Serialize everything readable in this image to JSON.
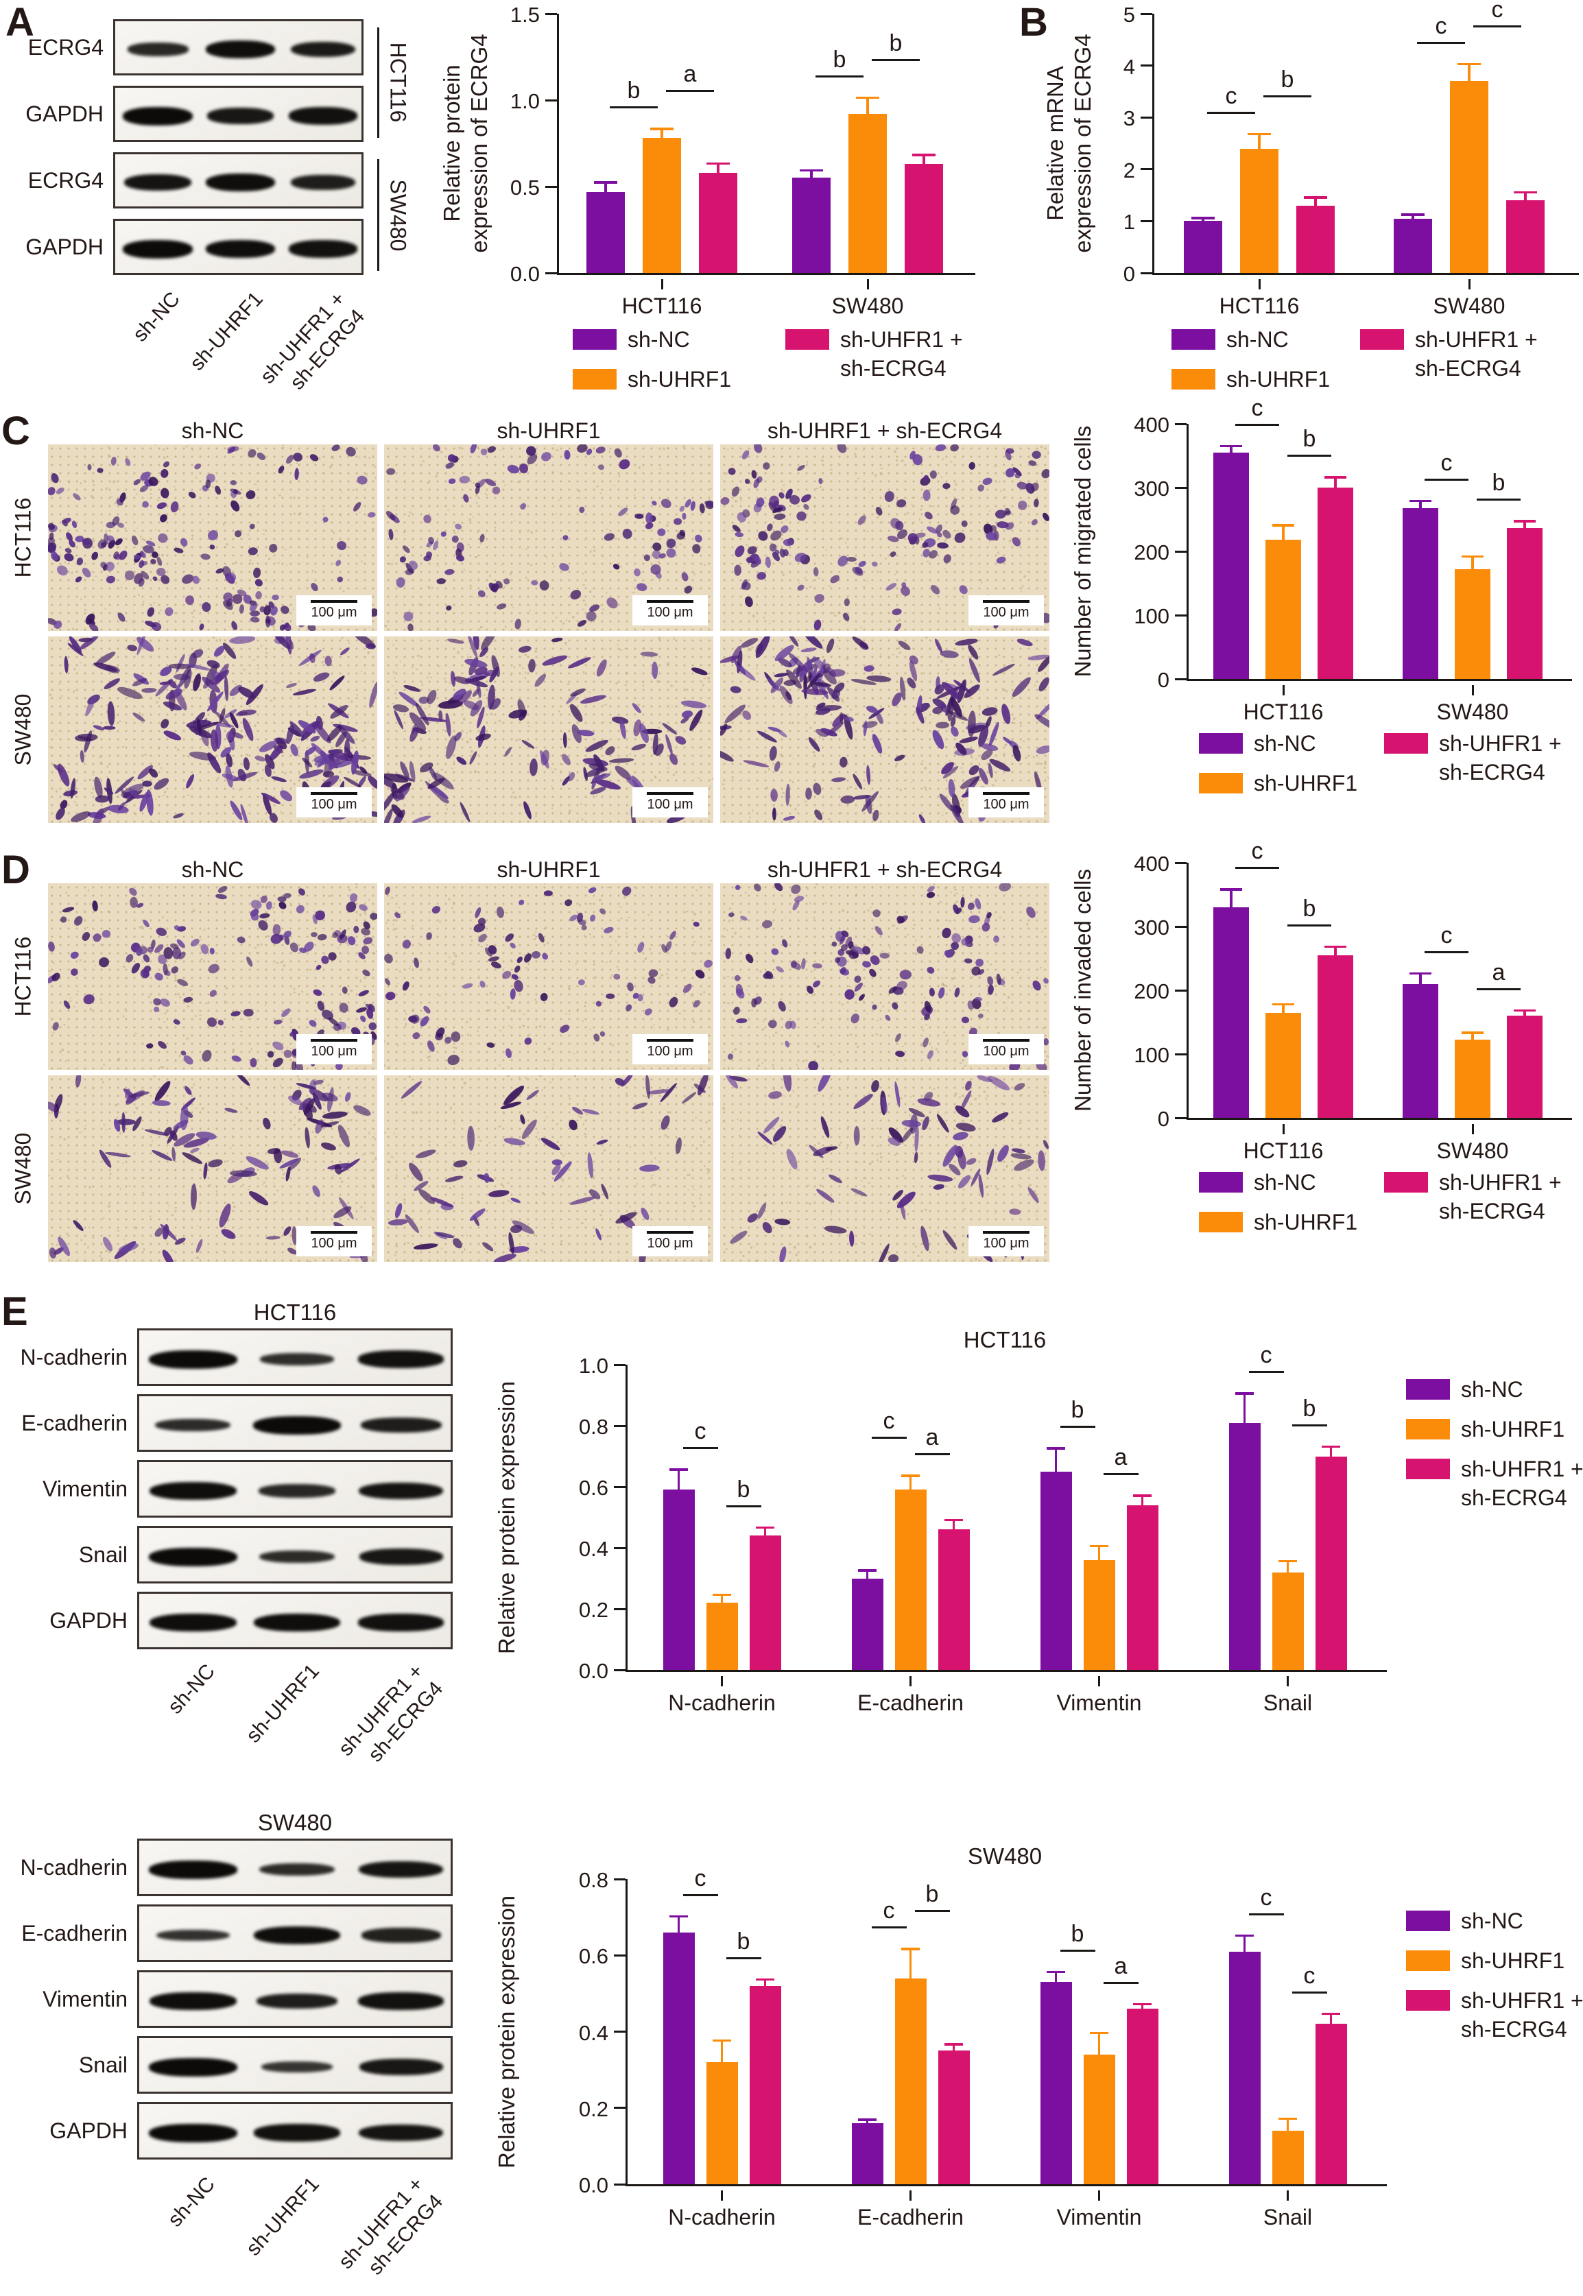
{
  "colors": {
    "purple": "#7D0FA0",
    "orange": "#FB8C0A",
    "magenta": "#D6146F",
    "text": "#231815",
    "axis": "#1A1714",
    "blot_border": "#3A3330",
    "band": "#0D0B09",
    "micro_bg": "#E9DCC1"
  },
  "legend": {
    "items": [
      {
        "label": "sh-NC",
        "color": "purple"
      },
      {
        "label": "sh-UHRF1",
        "color": "orange"
      },
      {
        "label": "sh-UHFR1 +",
        "label2": "sh-ECRG4",
        "color": "magenta"
      }
    ]
  },
  "lanes": [
    {
      "line1": "sh-NC"
    },
    {
      "line1": "sh-UHRF1"
    },
    {
      "line1": "sh-UHFR1 +",
      "line2": "sh-ECRG4"
    }
  ],
  "panels": {
    "A": {
      "letter": "A",
      "blot_rows": [
        {
          "label": "ECRG4",
          "bands": [
            0.55,
            0.95,
            0.75
          ]
        },
        {
          "label": "GAPDH",
          "bands": [
            1,
            0.8,
            0.9
          ]
        },
        {
          "label": "ECRG4",
          "bands": [
            0.85,
            0.95,
            0.7
          ]
        },
        {
          "label": "GAPDH",
          "bands": [
            1,
            0.95,
            0.9
          ]
        }
      ],
      "cell_lines": [
        "HCT116",
        "SW480"
      ]
    },
    "B": {
      "letter": "B"
    },
    "C": {
      "letter": "C",
      "col_headers": [
        "sh-NC",
        "sh-UHRF1",
        "sh-UHRF1 + sh-ECRG4"
      ],
      "row_labels": [
        "HCT116",
        "SW480"
      ],
      "scale_label": "100 μm",
      "cell_density": [
        [
          175,
          108,
          148
        ],
        [
          210,
          135,
          185
        ]
      ]
    },
    "D": {
      "letter": "D",
      "col_headers": [
        "sh-NC",
        "sh-UHRF1",
        "sh-UHFR1 + sh-ECRG4"
      ],
      "row_labels": [
        "HCT116",
        "SW480"
      ],
      "scale_label": "100 μm",
      "cell_density": [
        [
          160,
          85,
          128
        ],
        [
          108,
          64,
          82
        ]
      ]
    },
    "E": {
      "letter": "E",
      "blocks": [
        {
          "title": "HCT116",
          "blot_rows": [
            {
              "label": "N-cadherin",
              "bands": [
                1,
                0.45,
                0.9
              ]
            },
            {
              "label": "E-cadherin",
              "bands": [
                0.5,
                1,
                0.7
              ]
            },
            {
              "label": "Vimentin",
              "bands": [
                0.95,
                0.55,
                0.85
              ]
            },
            {
              "label": "Snail",
              "bands": [
                1,
                0.5,
                0.8
              ]
            },
            {
              "label": "GAPDH",
              "bands": [
                0.95,
                0.95,
                0.9
              ]
            }
          ]
        },
        {
          "title": "SW480",
          "blot_rows": [
            {
              "label": "N-cadherin",
              "bands": [
                1,
                0.5,
                0.85
              ]
            },
            {
              "label": "E-cadherin",
              "bands": [
                0.4,
                0.95,
                0.65
              ]
            },
            {
              "label": "Vimentin",
              "bands": [
                0.95,
                0.7,
                0.9
              ]
            },
            {
              "label": "Snail",
              "bands": [
                1,
                0.35,
                0.8
              ]
            },
            {
              "label": "GAPDH",
              "bands": [
                1,
                0.9,
                0.85
              ]
            }
          ]
        }
      ]
    }
  },
  "chart_data": [
    {
      "id": "A",
      "type": "bar",
      "title": "",
      "ylabel_lines": [
        "Relative protein",
        "expression of ECRG4"
      ],
      "ylim": [
        0,
        1.5
      ],
      "yticks": [
        0,
        0.5,
        1,
        1.5
      ],
      "ytick_labels": [
        "0.0",
        "0.5",
        "1.0",
        "1.5"
      ],
      "categories": [
        "HCT116",
        "SW480"
      ],
      "series": [
        {
          "name": "sh-NC",
          "color": "purple",
          "values": [
            0.47,
            0.55
          ],
          "errors": [
            0.06,
            0.05
          ]
        },
        {
          "name": "sh-UHRF1",
          "color": "orange",
          "values": [
            0.78,
            0.92
          ],
          "errors": [
            0.06,
            0.1
          ]
        },
        {
          "name": "sh-UHFR1 + sh-ECRG4",
          "color": "magenta",
          "values": [
            0.58,
            0.63
          ],
          "errors": [
            0.06,
            0.06
          ]
        }
      ],
      "sig": [
        {
          "cat": 0,
          "pair": [
            0,
            1
          ],
          "label": "b"
        },
        {
          "cat": 0,
          "pair": [
            1,
            2
          ],
          "label": "a"
        },
        {
          "cat": 1,
          "pair": [
            0,
            1
          ],
          "label": "b"
        },
        {
          "cat": 1,
          "pair": [
            1,
            2
          ],
          "label": "b"
        }
      ]
    },
    {
      "id": "B",
      "type": "bar",
      "title": "",
      "ylabel_lines": [
        "Relative mRNA",
        "expression of ECRG4"
      ],
      "ylim": [
        0,
        5
      ],
      "yticks": [
        0,
        1,
        2,
        3,
        4,
        5
      ],
      "ytick_labels": [
        "0",
        "1",
        "2",
        "3",
        "4",
        "5"
      ],
      "categories": [
        "HCT116",
        "SW480"
      ],
      "series": [
        {
          "name": "sh-NC",
          "color": "purple",
          "values": [
            1.0,
            1.05
          ],
          "errors": [
            0.08,
            0.1
          ]
        },
        {
          "name": "sh-UHRF1",
          "color": "orange",
          "values": [
            2.4,
            3.7
          ],
          "errors": [
            0.3,
            0.35
          ]
        },
        {
          "name": "sh-UHFR1 + sh-ECRG4",
          "color": "magenta",
          "values": [
            1.3,
            1.4
          ],
          "errors": [
            0.18,
            0.18
          ]
        }
      ],
      "sig": [
        {
          "cat": 0,
          "pair": [
            0,
            1
          ],
          "label": "c"
        },
        {
          "cat": 0,
          "pair": [
            1,
            2
          ],
          "label": "b"
        },
        {
          "cat": 1,
          "pair": [
            0,
            1
          ],
          "label": "c"
        },
        {
          "cat": 1,
          "pair": [
            1,
            2
          ],
          "label": "c"
        }
      ]
    },
    {
      "id": "C",
      "type": "bar",
      "title": "",
      "ylabel_lines": [
        "Number of migrated cells"
      ],
      "ylim": [
        0,
        400
      ],
      "yticks": [
        0,
        100,
        200,
        300,
        400
      ],
      "ytick_labels": [
        "0",
        "100",
        "200",
        "300",
        "400"
      ],
      "categories": [
        "HCT116",
        "SW480"
      ],
      "series": [
        {
          "name": "sh-NC",
          "color": "purple",
          "values": [
            355,
            268
          ],
          "errors": [
            12,
            13
          ]
        },
        {
          "name": "sh-UHRF1",
          "color": "orange",
          "values": [
            218,
            172
          ],
          "errors": [
            25,
            22
          ]
        },
        {
          "name": "sh-UHFR1 + sh-ECRG4",
          "color": "magenta",
          "values": [
            300,
            237
          ],
          "errors": [
            18,
            12
          ]
        }
      ],
      "sig": [
        {
          "cat": 0,
          "pair": [
            0,
            1
          ],
          "label": "c"
        },
        {
          "cat": 0,
          "pair": [
            1,
            2
          ],
          "label": "b"
        },
        {
          "cat": 1,
          "pair": [
            0,
            1
          ],
          "label": "c"
        },
        {
          "cat": 1,
          "pair": [
            1,
            2
          ],
          "label": "b"
        }
      ]
    },
    {
      "id": "D",
      "type": "bar",
      "title": "",
      "ylabel_lines": [
        "Number of invaded cells"
      ],
      "ylim": [
        0,
        400
      ],
      "yticks": [
        0,
        100,
        200,
        300,
        400
      ],
      "ytick_labels": [
        "0",
        "100",
        "200",
        "300",
        "400"
      ],
      "categories": [
        "HCT116",
        "SW480"
      ],
      "series": [
        {
          "name": "sh-NC",
          "color": "purple",
          "values": [
            330,
            210
          ],
          "errors": [
            30,
            18
          ]
        },
        {
          "name": "sh-UHRF1",
          "color": "orange",
          "values": [
            165,
            123
          ],
          "errors": [
            15,
            12
          ]
        },
        {
          "name": "sh-UHFR1 + sh-ECRG4",
          "color": "magenta",
          "values": [
            255,
            160
          ],
          "errors": [
            15,
            10
          ]
        }
      ],
      "sig": [
        {
          "cat": 0,
          "pair": [
            0,
            1
          ],
          "label": "c"
        },
        {
          "cat": 0,
          "pair": [
            1,
            2
          ],
          "label": "b"
        },
        {
          "cat": 1,
          "pair": [
            0,
            1
          ],
          "label": "c"
        },
        {
          "cat": 1,
          "pair": [
            1,
            2
          ],
          "label": "a"
        }
      ]
    },
    {
      "id": "E-HCT116",
      "type": "bar",
      "title": "HCT116",
      "ylabel_lines": [
        "Relative protein expression"
      ],
      "ylim": [
        0,
        1
      ],
      "yticks": [
        0,
        0.2,
        0.4,
        0.6,
        0.8,
        1
      ],
      "ytick_labels": [
        "0.0",
        "0.2",
        "0.4",
        "0.6",
        "0.8",
        "1.0"
      ],
      "categories": [
        "N-cadherin",
        "E-cadherin",
        "Vimentin",
        "Snail"
      ],
      "series": [
        {
          "name": "sh-NC",
          "color": "purple",
          "values": [
            0.59,
            0.3,
            0.65,
            0.81
          ],
          "errors": [
            0.07,
            0.03,
            0.08,
            0.1
          ]
        },
        {
          "name": "sh-UHRF1",
          "color": "orange",
          "values": [
            0.22,
            0.59,
            0.36,
            0.32
          ],
          "errors": [
            0.03,
            0.05,
            0.05,
            0.04
          ]
        },
        {
          "name": "sh-UHFR1 + sh-ECRG4",
          "color": "magenta",
          "values": [
            0.44,
            0.46,
            0.54,
            0.7
          ],
          "errors": [
            0.03,
            0.035,
            0.035,
            0.035
          ]
        }
      ],
      "sig": [
        {
          "cat": 0,
          "pair": [
            0,
            1
          ],
          "label": "c"
        },
        {
          "cat": 0,
          "pair": [
            1,
            2
          ],
          "label": "b"
        },
        {
          "cat": 1,
          "pair": [
            1,
            2
          ],
          "label": "a"
        },
        {
          "cat": 1,
          "pair": [
            0,
            1
          ],
          "label": "c"
        },
        {
          "cat": 2,
          "pair": [
            0,
            1
          ],
          "label": "b"
        },
        {
          "cat": 2,
          "pair": [
            1,
            2
          ],
          "label": "a"
        },
        {
          "cat": 3,
          "pair": [
            0,
            1
          ],
          "label": "c"
        },
        {
          "cat": 3,
          "pair": [
            1,
            2
          ],
          "label": "b"
        }
      ]
    },
    {
      "id": "E-SW480",
      "type": "bar",
      "title": "SW480",
      "ylabel_lines": [
        "Relative protein expression"
      ],
      "ylim": [
        0,
        0.8
      ],
      "yticks": [
        0,
        0.2,
        0.4,
        0.6,
        0.8
      ],
      "ytick_labels": [
        "0.0",
        "0.2",
        "0.4",
        "0.6",
        "0.8"
      ],
      "categories": [
        "N-cadherin",
        "E-cadherin",
        "Vimentin",
        "Snail"
      ],
      "series": [
        {
          "name": "sh-NC",
          "color": "purple",
          "values": [
            0.66,
            0.16,
            0.53,
            0.61
          ],
          "errors": [
            0.045,
            0.012,
            0.03,
            0.045
          ]
        },
        {
          "name": "sh-UHRF1",
          "color": "orange",
          "values": [
            0.32,
            0.54,
            0.34,
            0.14
          ],
          "errors": [
            0.06,
            0.08,
            0.06,
            0.035
          ]
        },
        {
          "name": "sh-UHFR1 + sh-ECRG4",
          "color": "magenta",
          "values": [
            0.52,
            0.35,
            0.46,
            0.42
          ],
          "errors": [
            0.02,
            0.02,
            0.015,
            0.03
          ]
        }
      ],
      "sig": [
        {
          "cat": 0,
          "pair": [
            0,
            1
          ],
          "label": "c"
        },
        {
          "cat": 0,
          "pair": [
            1,
            2
          ],
          "label": "b"
        },
        {
          "cat": 1,
          "pair": [
            0,
            1
          ],
          "label": "c"
        },
        {
          "cat": 1,
          "pair": [
            1,
            2
          ],
          "label": "b"
        },
        {
          "cat": 2,
          "pair": [
            0,
            1
          ],
          "label": "b"
        },
        {
          "cat": 2,
          "pair": [
            1,
            2
          ],
          "label": "a"
        },
        {
          "cat": 3,
          "pair": [
            0,
            1
          ],
          "label": "c"
        },
        {
          "cat": 3,
          "pair": [
            1,
            2
          ],
          "label": "c"
        }
      ]
    }
  ]
}
